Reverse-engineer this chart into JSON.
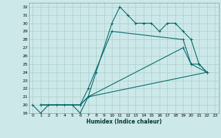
{
  "xlabel": "Humidex (Indice chaleur)",
  "bg_color": "#cce8e8",
  "grid_color": "#aacccc",
  "line_color": "#006666",
  "xlim": [
    -0.5,
    23.5
  ],
  "ylim": [
    19,
    32.5
  ],
  "xticks": [
    0,
    1,
    2,
    3,
    4,
    5,
    6,
    7,
    8,
    9,
    10,
    11,
    12,
    13,
    14,
    15,
    16,
    17,
    18,
    19,
    20,
    21,
    22,
    23
  ],
  "yticks": [
    19,
    20,
    21,
    22,
    23,
    24,
    25,
    26,
    27,
    28,
    29,
    30,
    31,
    32
  ],
  "curves": [
    {
      "x": [
        0,
        1,
        2,
        3,
        4,
        5,
        6,
        7,
        8,
        10,
        11,
        12,
        13,
        14,
        15,
        16,
        17,
        18,
        19,
        20,
        21,
        22
      ],
      "y": [
        20,
        19,
        20,
        20,
        20,
        20,
        19,
        21,
        24,
        30,
        32,
        31,
        30,
        30,
        30,
        29,
        30,
        30,
        29,
        28,
        25,
        24
      ]
    },
    {
      "x": [
        1,
        6,
        7,
        10,
        19,
        20,
        22
      ],
      "y": [
        20,
        20,
        22,
        29,
        28,
        25,
        24
      ]
    },
    {
      "x": [
        1,
        6,
        7,
        19,
        20,
        21,
        22
      ],
      "y": [
        20,
        20,
        21,
        27,
        25,
        25,
        24
      ]
    },
    {
      "x": [
        1,
        6,
        7,
        22
      ],
      "y": [
        20,
        20,
        21,
        24
      ]
    }
  ]
}
